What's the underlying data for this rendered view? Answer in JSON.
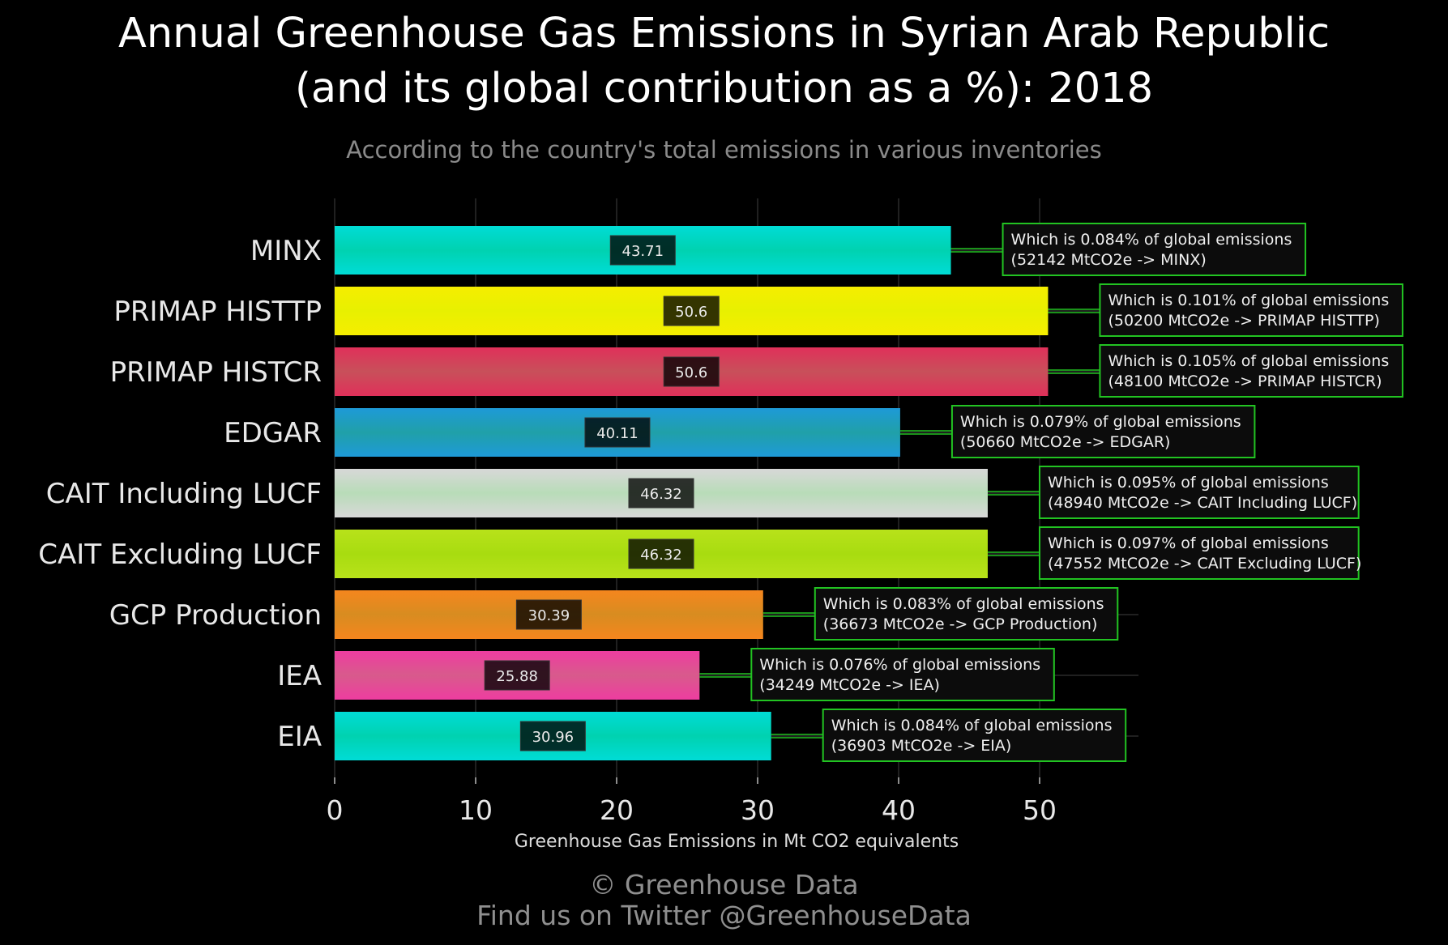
{
  "title_line1": "Annual Greenhouse Gas Emissions in Syrian Arab Republic",
  "title_line2": "(and its global contribution as a %): 2018",
  "subtitle": "According to the country's total emissions in various inventories",
  "footer_line1": "© Greenhouse Data",
  "footer_line2": "Find us on Twitter @GreenhouseData",
  "colors": {
    "background": "#000000",
    "annotation_border": "#22c322",
    "connector": "#22c322"
  },
  "chart_data": {
    "type": "bar",
    "orientation": "horizontal",
    "xlabel": "Greenhouse Gas Emissions in Mt CO2 equivalents",
    "xlim": [
      0,
      57
    ],
    "xticks": [
      0,
      10,
      20,
      30,
      40,
      50
    ],
    "grid": true,
    "categories": [
      "MINX",
      "PRIMAP HISTTP",
      "PRIMAP HISTCR",
      "EDGAR",
      "CAIT Including LUCF",
      "CAIT Excluding LUCF",
      "GCP Production",
      "IEA",
      "EIA"
    ],
    "values": [
      43.71,
      50.6,
      50.6,
      40.11,
      46.32,
      46.32,
      30.39,
      25.88,
      30.96
    ],
    "value_labels": [
      "43.71",
      "50.6",
      "50.6",
      "40.11",
      "46.32",
      "46.32",
      "30.39",
      "25.88",
      "30.96"
    ],
    "bar_colors": [
      "#00dcd6",
      "#f5ee00",
      "#e0305a",
      "#1e9ad8",
      "#d8d8d8",
      "#b8e21a",
      "#f5861e",
      "#ee3da0",
      "#00dcd6"
    ],
    "bar_mid_colors": [
      "#00d2b0",
      "#e8f000",
      "#c8505a",
      "#20a0a8",
      "#b8dcb8",
      "#a8dc10",
      "#d88c20",
      "#d85a8c",
      "#00d2b0"
    ],
    "annotations": [
      [
        "Which is 0.084% of global emissions",
        "(52142 MtCO2e -> MINX)"
      ],
      [
        "Which is 0.101% of global emissions",
        "(50200 MtCO2e -> PRIMAP HISTTP)"
      ],
      [
        "Which is 0.105% of global emissions",
        "(48100 MtCO2e -> PRIMAP HISTCR)"
      ],
      [
        "Which is 0.079% of global emissions",
        "(50660 MtCO2e -> EDGAR)"
      ],
      [
        "Which is 0.095% of global emissions",
        "(48940 MtCO2e -> CAIT Including LUCF)"
      ],
      [
        "Which is 0.097% of global emissions",
        "(47552 MtCO2e -> CAIT Excluding LUCF)"
      ],
      [
        "Which is 0.083% of global emissions",
        "(36673 MtCO2e -> GCP Production)"
      ],
      [
        "Which is 0.076% of global emissions",
        "(34249 MtCO2e -> IEA)"
      ],
      [
        "Which is 0.084% of global emissions",
        "(36903 MtCO2e -> EIA)"
      ]
    ]
  }
}
